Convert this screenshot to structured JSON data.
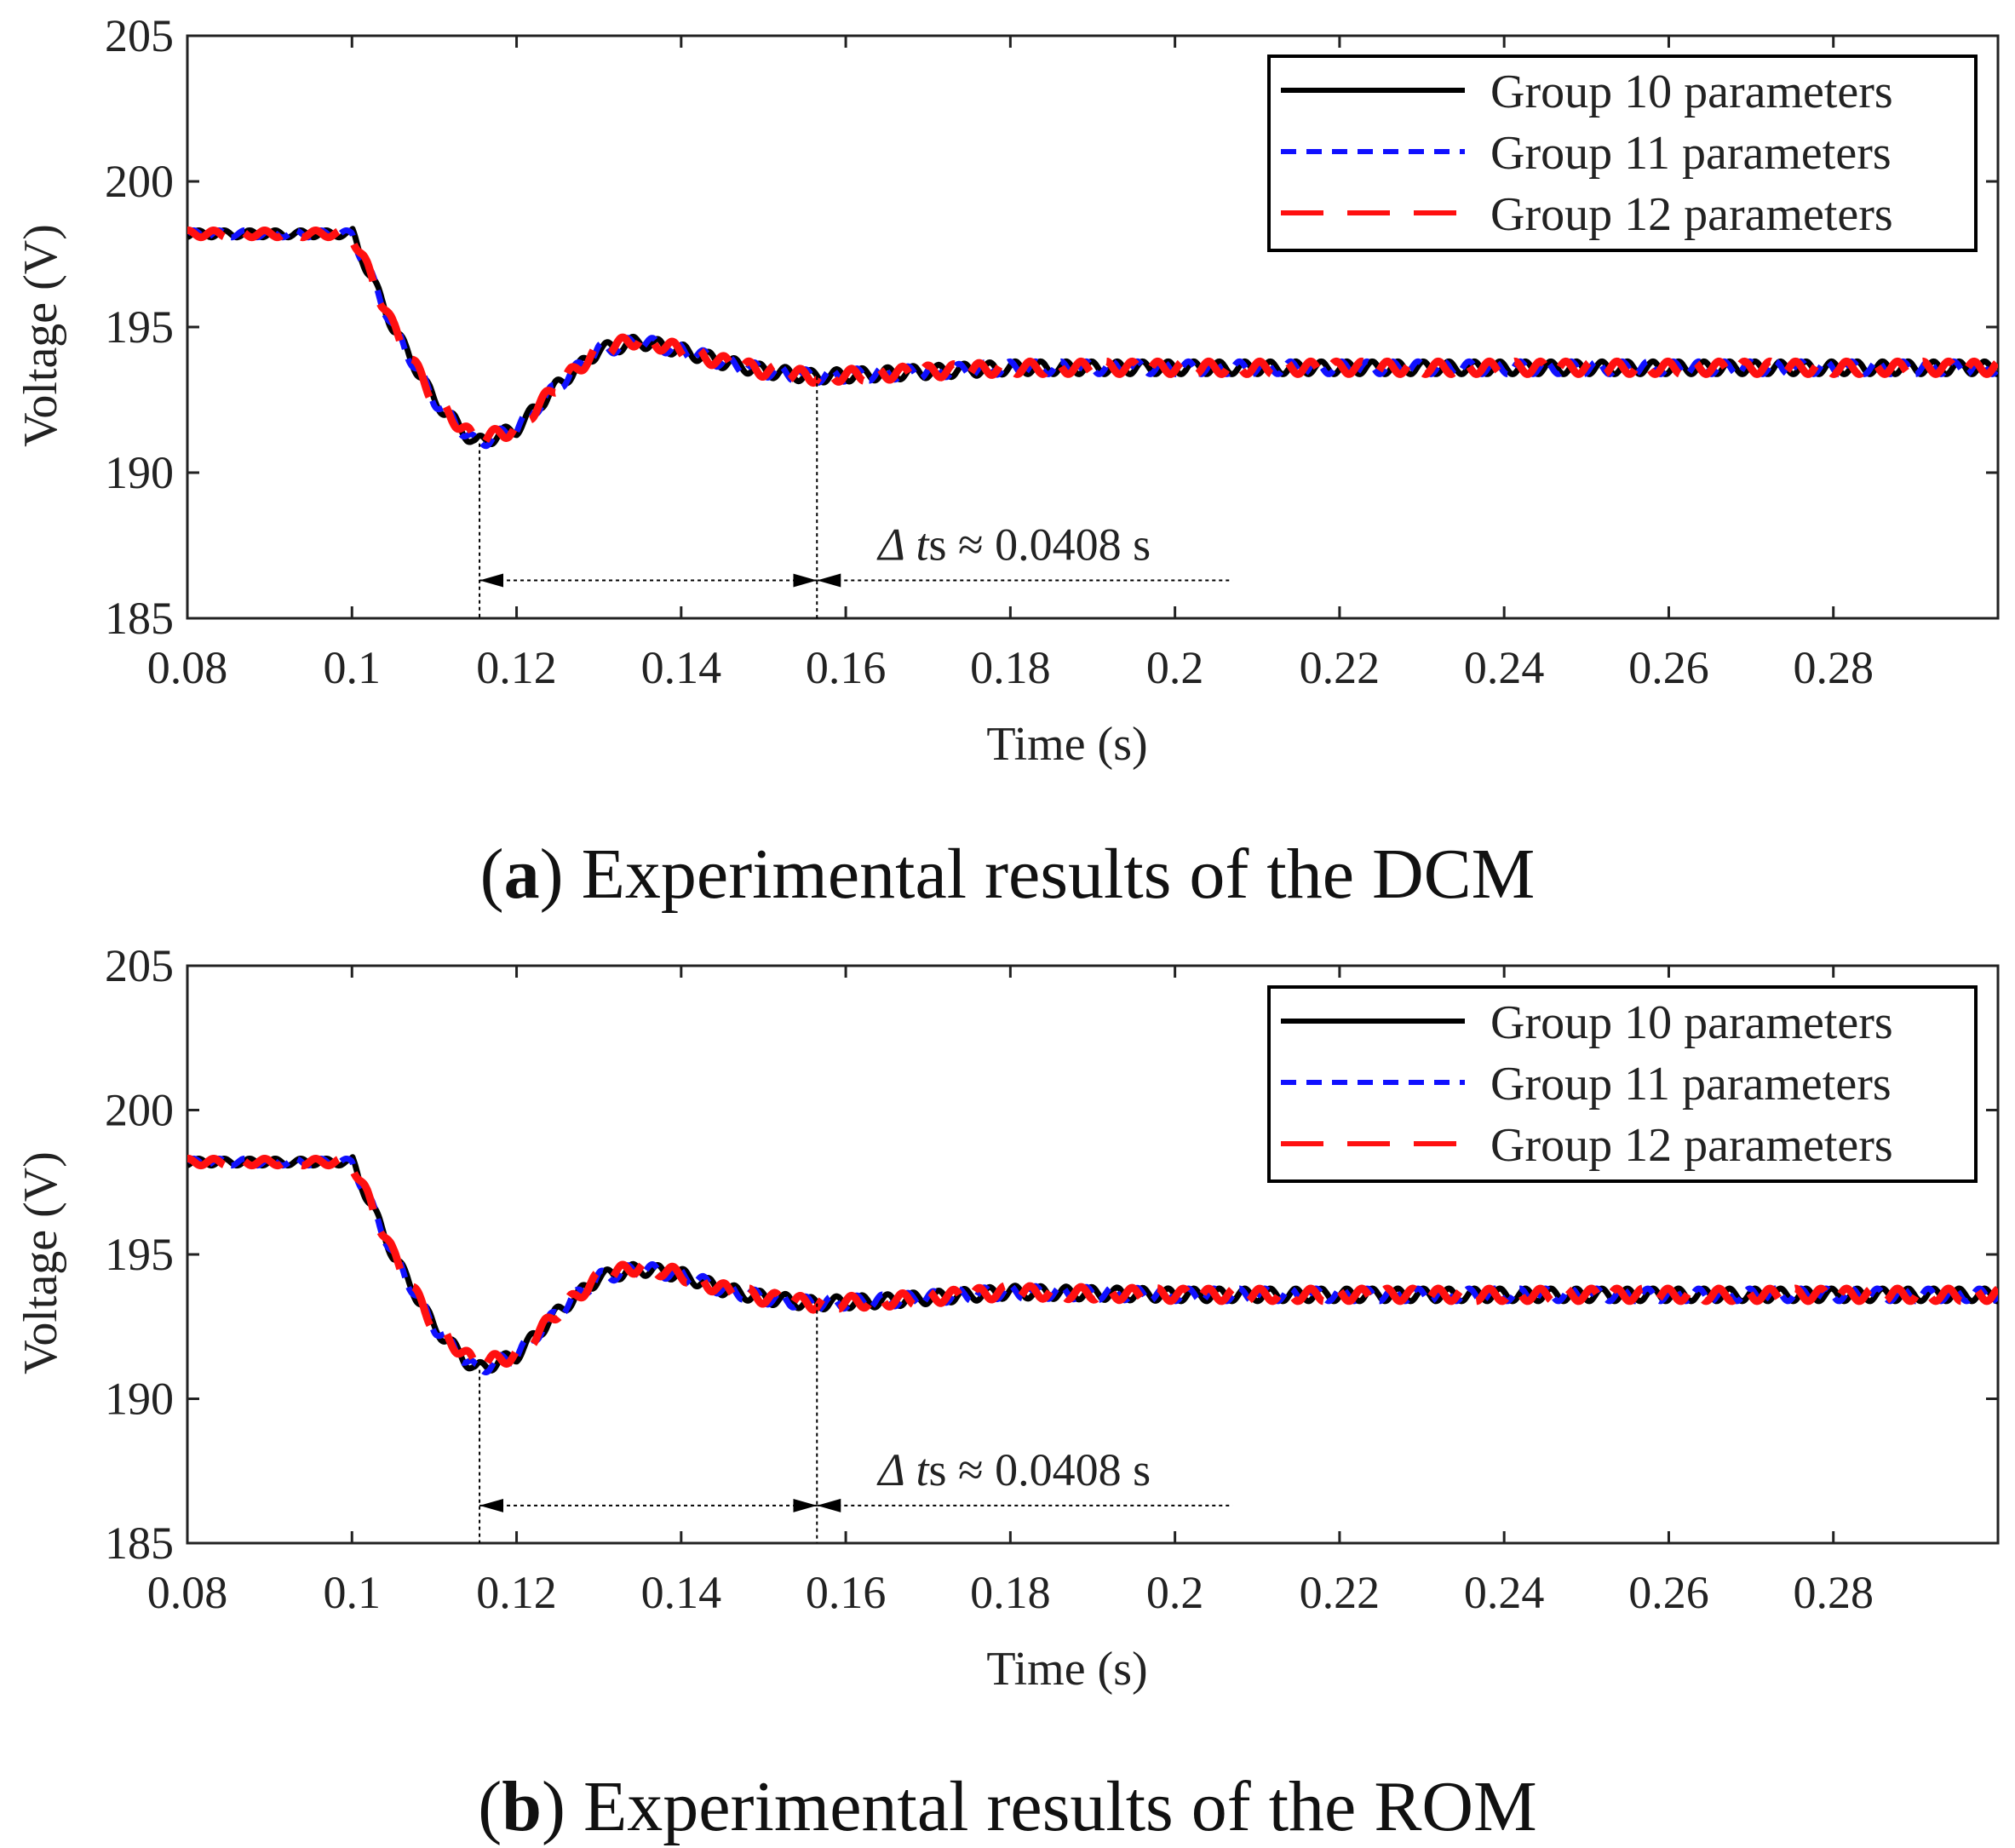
{
  "charts": [
    {
      "id": "a",
      "caption_letter": "a",
      "caption_text": " Experimental results of the DCM",
      "chart_data": {
        "type": "line",
        "title": "",
        "xlabel": "Time (s)",
        "ylabel": "Voltage (V)",
        "xlim": [
          0.08,
          0.3
        ],
        "ylim": [
          185,
          205
        ],
        "x_ticks": [
          0.08,
          0.1,
          0.12,
          0.14,
          0.16,
          0.18,
          0.2,
          0.22,
          0.24,
          0.26,
          0.28
        ],
        "x_tick_labels": [
          "0.08",
          "0.1",
          "0.12",
          "0.14",
          "0.16",
          "0.18",
          "0.2",
          "0.22",
          "0.24",
          "0.26",
          "0.28"
        ],
        "y_ticks": [
          185,
          190,
          195,
          200,
          205
        ],
        "y_tick_labels": [
          "185",
          "190",
          "195",
          "200",
          "205"
        ],
        "legend_position": "top-right",
        "series": [
          {
            "name": "Group 10 parameters",
            "color": "#000000",
            "style": "solid",
            "x": [
              0.08,
              0.1,
              0.105,
              0.11,
              0.115,
              0.12,
              0.125,
              0.13,
              0.135,
              0.14,
              0.145,
              0.15,
              0.156,
              0.165,
              0.18,
              0.2,
              0.22,
              0.24,
              0.26,
              0.28,
              0.3
            ],
            "y": [
              198.2,
              198.2,
              195.0,
              192.5,
              191.0,
              191.5,
              193.0,
              194.2,
              194.5,
              194.2,
              193.8,
              193.5,
              193.3,
              193.4,
              193.6,
              193.6,
              193.6,
              193.6,
              193.6,
              193.6,
              193.6
            ]
          },
          {
            "name": "Group 11 parameters",
            "color": "#1010ff",
            "style": "short-dash",
            "x": [
              0.08,
              0.1,
              0.105,
              0.11,
              0.115,
              0.12,
              0.125,
              0.13,
              0.135,
              0.14,
              0.145,
              0.15,
              0.156,
              0.165,
              0.18,
              0.2,
              0.22,
              0.24,
              0.26,
              0.28,
              0.3
            ],
            "y": [
              198.2,
              198.2,
              195.0,
              192.5,
              191.0,
              191.5,
              193.0,
              194.2,
              194.5,
              194.2,
              193.8,
              193.5,
              193.3,
              193.4,
              193.6,
              193.6,
              193.6,
              193.6,
              193.6,
              193.6,
              193.6
            ]
          },
          {
            "name": "Group 12 parameters",
            "color": "#ff1010",
            "style": "long-dash",
            "x": [
              0.08,
              0.1,
              0.105,
              0.11,
              0.115,
              0.12,
              0.125,
              0.13,
              0.135,
              0.14,
              0.145,
              0.15,
              0.156,
              0.165,
              0.18,
              0.2,
              0.22,
              0.24,
              0.26,
              0.28,
              0.3
            ],
            "y": [
              198.2,
              198.2,
              195.0,
              192.5,
              191.1,
              191.5,
              193.0,
              194.2,
              194.6,
              194.2,
              193.8,
              193.5,
              193.3,
              193.4,
              193.6,
              193.6,
              193.6,
              193.6,
              193.6,
              193.6,
              193.6
            ]
          }
        ],
        "annotations": [
          {
            "type": "interval",
            "x_start": 0.1155,
            "x_end": 0.1565,
            "y_level": 186.3,
            "y_start_top": 191.0,
            "y_end_top": 193.3,
            "extend_to": 0.207,
            "text_prefix": "Δ t",
            "text_sub": "s",
            "text_suffix": " ≈ 0.0408 s"
          }
        ]
      }
    },
    {
      "id": "b",
      "caption_letter": "b",
      "caption_text": " Experimental results of the ROM",
      "chart_data": {
        "type": "line",
        "title": "",
        "xlabel": "Time (s)",
        "ylabel": "Voltage (V)",
        "xlim": [
          0.08,
          0.3
        ],
        "ylim": [
          185,
          205
        ],
        "x_ticks": [
          0.08,
          0.1,
          0.12,
          0.14,
          0.16,
          0.18,
          0.2,
          0.22,
          0.24,
          0.26,
          0.28
        ],
        "x_tick_labels": [
          "0.08",
          "0.1",
          "0.12",
          "0.14",
          "0.16",
          "0.18",
          "0.2",
          "0.22",
          "0.24",
          "0.26",
          "0.28"
        ],
        "y_ticks": [
          185,
          190,
          195,
          200,
          205
        ],
        "y_tick_labels": [
          "185",
          "190",
          "195",
          "200",
          "205"
        ],
        "legend_position": "top-right",
        "series": [
          {
            "name": "Group 10 parameters",
            "color": "#000000",
            "style": "solid",
            "x": [
              0.08,
              0.1,
              0.105,
              0.11,
              0.115,
              0.12,
              0.125,
              0.13,
              0.135,
              0.14,
              0.145,
              0.15,
              0.156,
              0.165,
              0.18,
              0.2,
              0.22,
              0.24,
              0.26,
              0.28,
              0.3
            ],
            "y": [
              198.2,
              198.2,
              195.0,
              192.5,
              191.0,
              191.5,
              193.0,
              194.2,
              194.5,
              194.3,
              193.8,
              193.5,
              193.3,
              193.4,
              193.7,
              193.6,
              193.6,
              193.6,
              193.6,
              193.6,
              193.6
            ]
          },
          {
            "name": "Group 11 parameters",
            "color": "#1010ff",
            "style": "short-dash",
            "x": [
              0.08,
              0.1,
              0.105,
              0.11,
              0.115,
              0.12,
              0.125,
              0.13,
              0.135,
              0.14,
              0.145,
              0.15,
              0.156,
              0.165,
              0.18,
              0.2,
              0.22,
              0.24,
              0.26,
              0.28,
              0.3
            ],
            "y": [
              198.2,
              198.2,
              195.0,
              192.5,
              191.0,
              191.5,
              193.0,
              194.2,
              194.5,
              194.3,
              193.8,
              193.5,
              193.3,
              193.4,
              193.7,
              193.6,
              193.6,
              193.6,
              193.6,
              193.6,
              193.6
            ]
          },
          {
            "name": "Group 12 parameters",
            "color": "#ff1010",
            "style": "long-dash",
            "x": [
              0.08,
              0.1,
              0.105,
              0.11,
              0.115,
              0.12,
              0.125,
              0.13,
              0.135,
              0.14,
              0.145,
              0.15,
              0.156,
              0.165,
              0.18,
              0.2,
              0.22,
              0.24,
              0.26,
              0.28,
              0.3
            ],
            "y": [
              198.2,
              198.2,
              195.0,
              192.5,
              191.2,
              191.5,
              193.0,
              194.2,
              194.6,
              194.3,
              193.8,
              193.5,
              193.3,
              193.4,
              193.7,
              193.6,
              193.6,
              193.6,
              193.6,
              193.6,
              193.6
            ]
          }
        ],
        "annotations": [
          {
            "type": "interval",
            "x_start": 0.1155,
            "x_end": 0.1565,
            "y_level": 186.3,
            "y_start_top": 191.0,
            "y_end_top": 193.3,
            "extend_to": 0.207,
            "text_prefix": "Δ t",
            "text_sub": "s",
            "text_suffix": " ≈ 0.0408 s"
          }
        ]
      }
    }
  ]
}
